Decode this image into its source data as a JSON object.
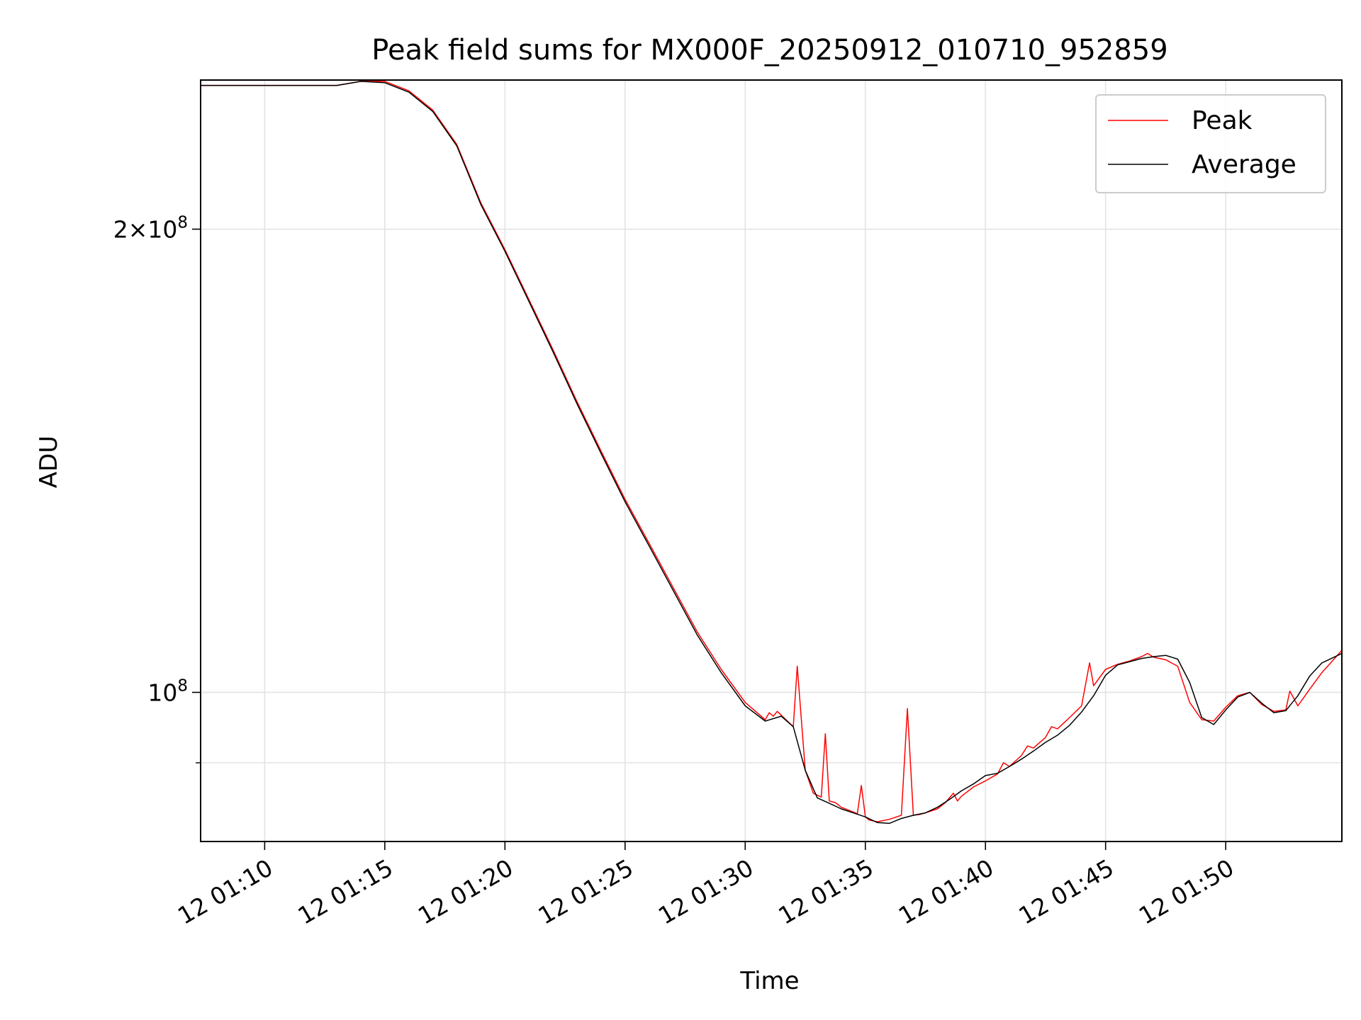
{
  "chart_data": {
    "type": "line",
    "title": "Peak field sums for MX000F_20250912_010710_952859",
    "xlabel": "Time",
    "ylabel": "ADU",
    "x_scale": "time",
    "y_scale": "log",
    "xlim": [
      "12 01:07:20",
      "12 01:54:50"
    ],
    "ylim": [
      80000000,
      250000000
    ],
    "grid": true,
    "legend_position": "upper right",
    "x_ticks": [
      "12 01:10",
      "12 01:15",
      "12 01:20",
      "12 01:25",
      "12 01:30",
      "12 01:35",
      "12 01:40",
      "12 01:45",
      "12 01:50"
    ],
    "y_ticks": [
      {
        "value": 100000000,
        "label": "10",
        "sup": "8"
      },
      {
        "value": 200000000,
        "label": "2×10",
        "sup": "8"
      }
    ],
    "y_minor_ticks": [
      90000000
    ],
    "series": [
      {
        "name": "Peak",
        "color": "#ff0000",
        "x": [
          "12 01:07:20",
          "12 01:13:00",
          "12 01:14:00",
          "12 01:15:00",
          "12 01:16:00",
          "12 01:17:00",
          "12 01:18:00",
          "12 01:19:00",
          "12 01:20:00",
          "12 01:21:00",
          "12 01:22:00",
          "12 01:23:00",
          "12 01:24:00",
          "12 01:25:00",
          "12 01:26:00",
          "12 01:27:00",
          "12 01:28:00",
          "12 01:29:00",
          "12 01:30:00",
          "12 01:30:50",
          "12 01:31:00",
          "12 01:31:10",
          "12 01:31:20",
          "12 01:32:00",
          "12 01:32:10",
          "12 01:32:30",
          "12 01:32:50",
          "12 01:33:10",
          "12 01:33:20",
          "12 01:33:30",
          "12 01:33:45",
          "12 01:34:00",
          "12 01:34:20",
          "12 01:34:40",
          "12 01:34:50",
          "12 01:35:00",
          "12 01:35:10",
          "12 01:35:30",
          "12 01:36:00",
          "12 01:36:30",
          "12 01:36:45",
          "12 01:37:00",
          "12 01:37:15",
          "12 01:37:30",
          "12 01:38:00",
          "12 01:38:20",
          "12 01:38:40",
          "12 01:38:50",
          "12 01:39:00",
          "12 01:39:30",
          "12 01:40:00",
          "12 01:40:30",
          "12 01:40:45",
          "12 01:41:00",
          "12 01:41:30",
          "12 01:41:45",
          "12 01:42:00",
          "12 01:42:30",
          "12 01:42:45",
          "12 01:43:00",
          "12 01:43:30",
          "12 01:44:00",
          "12 01:44:20",
          "12 01:44:30",
          "12 01:45:00",
          "12 01:45:30",
          "12 01:46:00",
          "12 01:46:30",
          "12 01:46:45",
          "12 01:47:00",
          "12 01:47:30",
          "12 01:48:00",
          "12 01:48:30",
          "12 01:49:00",
          "12 01:49:30",
          "12 01:50:00",
          "12 01:50:30",
          "12 01:51:00",
          "12 01:51:30",
          "12 01:52:00",
          "12 01:52:30",
          "12 01:52:40",
          "12 01:53:00",
          "12 01:53:30",
          "12 01:54:00",
          "12 01:54:50"
        ],
        "values": [
          248000000,
          248000000,
          249500000,
          249500000,
          246000000,
          239000000,
          227000000,
          208000000,
          194000000,
          180000000,
          167000000,
          154500000,
          143500000,
          133500000,
          125000000,
          117000000,
          109500000,
          103500000,
          98500000,
          96000000,
          97000000,
          96500000,
          97200000,
          95000000,
          104000000,
          89000000,
          86000000,
          85500000,
          94000000,
          85000000,
          84800000,
          84200000,
          83800000,
          83400000,
          87000000,
          83000000,
          82600000,
          82400000,
          82700000,
          83200000,
          97600000,
          83200000,
          83300000,
          83500000,
          84000000,
          84800000,
          86000000,
          85000000,
          85600000,
          86800000,
          87600000,
          88500000,
          90000000,
          89500000,
          91000000,
          92300000,
          92000000,
          93500000,
          95000000,
          94700000,
          96300000,
          98000000,
          104500000,
          101000000,
          103500000,
          104300000,
          104800000,
          105500000,
          106000000,
          105400000,
          105000000,
          104000000,
          98500000,
          96000000,
          95800000,
          97800000,
          99500000,
          100000000,
          98200000,
          97200000,
          97400000,
          100200000,
          98000000,
          100500000,
          103000000,
          106500000
        ]
      },
      {
        "name": "Average",
        "color": "#000000",
        "x": [
          "12 01:07:20",
          "12 01:13:00",
          "12 01:14:00",
          "12 01:15:00",
          "12 01:16:00",
          "12 01:17:00",
          "12 01:18:00",
          "12 01:19:00",
          "12 01:20:00",
          "12 01:21:00",
          "12 01:22:00",
          "12 01:23:00",
          "12 01:24:00",
          "12 01:25:00",
          "12 01:26:00",
          "12 01:27:00",
          "12 01:28:00",
          "12 01:29:00",
          "12 01:30:00",
          "12 01:30:50",
          "12 01:31:30",
          "12 01:32:00",
          "12 01:32:30",
          "12 01:33:00",
          "12 01:33:30",
          "12 01:34:00",
          "12 01:34:30",
          "12 01:35:00",
          "12 01:35:30",
          "12 01:36:00",
          "12 01:36:30",
          "12 01:37:00",
          "12 01:37:30",
          "12 01:38:00",
          "12 01:38:30",
          "12 01:39:00",
          "12 01:39:30",
          "12 01:40:00",
          "12 01:40:30",
          "12 01:41:00",
          "12 01:41:30",
          "12 01:42:00",
          "12 01:42:30",
          "12 01:43:00",
          "12 01:43:30",
          "12 01:44:00",
          "12 01:44:30",
          "12 01:45:00",
          "12 01:45:30",
          "12 01:46:00",
          "12 01:46:30",
          "12 01:47:00",
          "12 01:47:30",
          "12 01:48:00",
          "12 01:48:30",
          "12 01:49:00",
          "12 01:49:30",
          "12 01:50:00",
          "12 01:50:30",
          "12 01:51:00",
          "12 01:51:30",
          "12 01:52:00",
          "12 01:52:30",
          "12 01:53:00",
          "12 01:53:30",
          "12 01:54:00",
          "12 01:54:50"
        ],
        "values": [
          248000000,
          248000000,
          249500000,
          249000000,
          245500000,
          238500000,
          226500000,
          207500000,
          193500000,
          179500000,
          166500000,
          154000000,
          143000000,
          133000000,
          124500000,
          116500000,
          109000000,
          103000000,
          98000000,
          95800000,
          96500000,
          95000000,
          89000000,
          85400000,
          84700000,
          84000000,
          83500000,
          83000000,
          82300000,
          82200000,
          82800000,
          83200000,
          83500000,
          84200000,
          85200000,
          86300000,
          87200000,
          88300000,
          88600000,
          89500000,
          90500000,
          91600000,
          92800000,
          93800000,
          95200000,
          97100000,
          99500000,
          102600000,
          104200000,
          104700000,
          105200000,
          105500000,
          105700000,
          105100000,
          101500000,
          96300000,
          95300000,
          97400000,
          99300000,
          100000000,
          98400000,
          97000000,
          97300000,
          99500000,
          102500000,
          104500000,
          106000000
        ]
      }
    ]
  }
}
